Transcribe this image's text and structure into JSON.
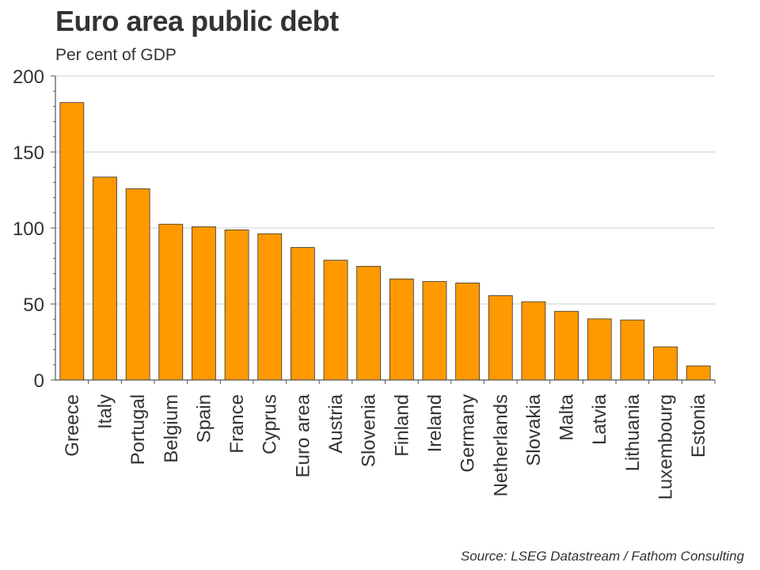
{
  "chart_data": {
    "type": "bar",
    "title": "Euro area public debt",
    "subtitle": "Per cent of GDP",
    "source": "Source: LSEG Datastream / Fathom Consulting",
    "xlabel": "",
    "ylabel": "",
    "ylim": [
      0,
      200
    ],
    "yticks": [
      "0",
      "50",
      "100",
      "150",
      "200"
    ],
    "grid": true,
    "bar_color": "#ff9900",
    "categories": [
      "Greece",
      "Italy",
      "Portugal",
      "Belgium",
      "Spain",
      "France",
      "Cyprus",
      "Euro area",
      "Austria",
      "Slovenia",
      "Finland",
      "Ireland",
      "Germany",
      "Netherlands",
      "Slovakia",
      "Malta",
      "Latvia",
      "Lithuania",
      "Luxembourg",
      "Estonia"
    ],
    "values": [
      182.5,
      133.5,
      125.8,
      102.5,
      100.8,
      98.8,
      96.2,
      87.2,
      78.8,
      74.8,
      66.5,
      64.8,
      63.8,
      55.5,
      51.5,
      45.2,
      40.2,
      39.5,
      21.8,
      9.3
    ]
  }
}
